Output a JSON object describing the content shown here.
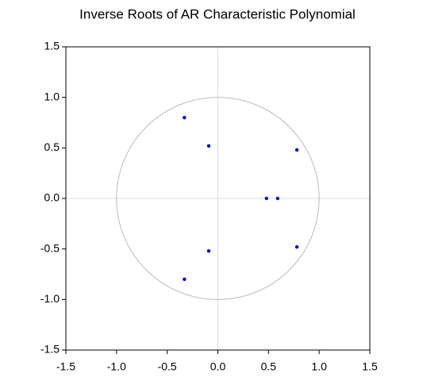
{
  "chart_data": {
    "type": "scatter",
    "title": "Inverse Roots of AR Characteristic Polynomial",
    "x": [
      -0.33,
      -0.09,
      0.78,
      0.48,
      0.59,
      0.78,
      -0.09,
      -0.33
    ],
    "values": [
      0.8,
      0.52,
      0.48,
      0.0,
      0.0,
      -0.48,
      -0.52,
      -0.8
    ],
    "color": "#0000cc",
    "xlim": [
      -1.5,
      1.5
    ],
    "xticks": [
      -1.5,
      {
        "value": -1,
        "label": "-1.0"
      },
      -0.5,
      {
        "value": 0,
        "label": "0.0"
      },
      0.5,
      {
        "value": 1,
        "label": "1.0"
      },
      1.5
    ],
    "ylim": [
      -1.5,
      1.5
    ],
    "yticks": [
      -1.5,
      {
        "value": -1,
        "label": "-1.0"
      },
      -0.5,
      {
        "value": 0,
        "label": "0.0"
      },
      0.5,
      {
        "value": 1,
        "label": "1.0"
      },
      1.5
    ],
    "circle_radius": 1,
    "zero_lines": true
  }
}
